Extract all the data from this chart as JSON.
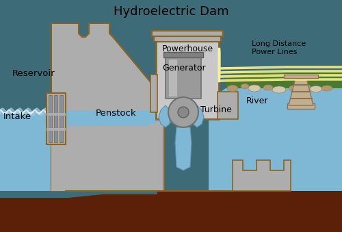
{
  "title": "Hydroelectric Dam",
  "title_fontsize": 13,
  "bg_color": "#3D6B78",
  "dam_color": "#ADADAD",
  "dam_outline": "#8B6420",
  "water_color": "#7EB8D4",
  "earth_color": "#5C2008",
  "powerhouse_color": "#C8C8C8",
  "generator_color": "#989898",
  "power_line_color": "#F5F0A0",
  "power_line_color2": "#E8E060",
  "pylon_color": "#C0B090",
  "grass_color": "#4A7A30",
  "rock_color_light": "#D0C8B0",
  "rock_color_dark": "#B09870",
  "labels": {
    "reservoir": "Reservoir",
    "intake": "Intake",
    "penstock": "Penstock",
    "powerhouse": "Powerhouse",
    "generator": "Generator",
    "turbine": "Turbine",
    "river": "River",
    "power_lines": "Long Distance\nPower Lines"
  },
  "fig_width": 5.0,
  "fig_height": 3.39,
  "dpi": 100
}
